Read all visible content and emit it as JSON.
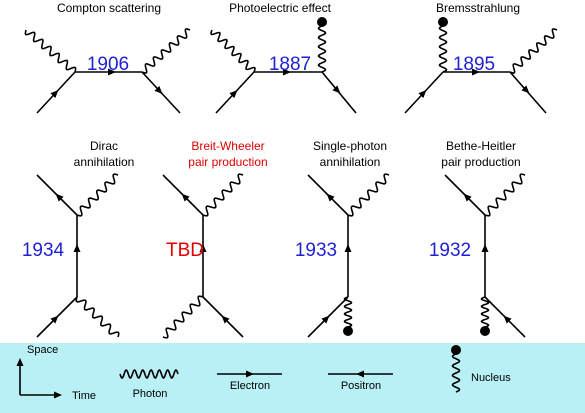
{
  "colors": {
    "year": "#1f1fd6",
    "tbd": "#e00000",
    "legend_bg": "#b8f0f6",
    "line": "#000000"
  },
  "diagrams": [
    {
      "title": "Compton scattering",
      "year": "1906"
    },
    {
      "title": "Photoelectric effect",
      "year": "1887"
    },
    {
      "title": "Bremsstrahlung",
      "year": "1895"
    },
    {
      "title_lines": [
        "Dirac",
        "annihilation"
      ],
      "year": "1934"
    },
    {
      "title_lines": [
        "Breit-Wheeler",
        "pair production"
      ],
      "year": "TBD"
    },
    {
      "title_lines": [
        "Single-photon",
        "annihilation"
      ],
      "year": "1933"
    },
    {
      "title_lines": [
        "Bethe-Heitler",
        "pair production"
      ],
      "year": "1932"
    }
  ],
  "legend": {
    "axis_y": "Space",
    "axis_x": "Time",
    "photon": "Photon",
    "electron": "Electron",
    "positron": "Positron",
    "nucleus": "Nucleus"
  }
}
